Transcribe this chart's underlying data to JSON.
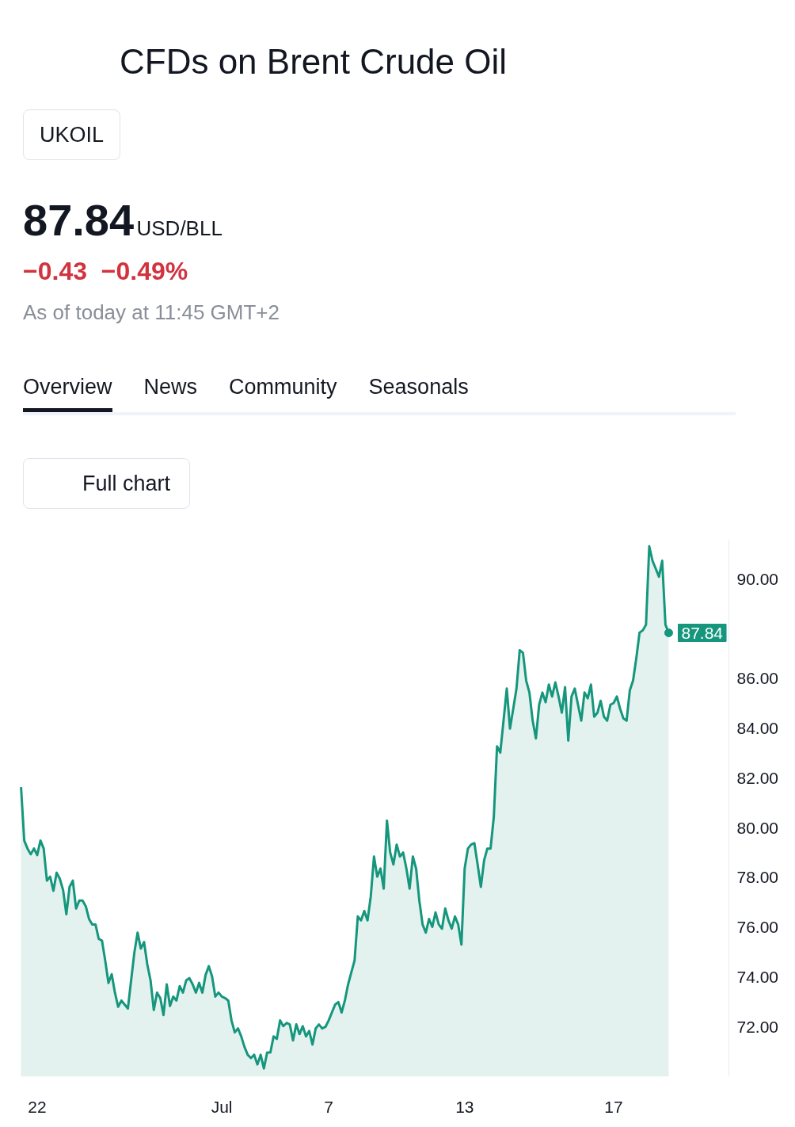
{
  "chart_data": {
    "type": "area",
    "title": "CFDs on Brent Crude Oil",
    "annotations": [
      "UKOIL",
      "87.84",
      "USD/BLL",
      "−0.43",
      "−0.49%",
      "As of today at 11:45 GMT+2",
      "Overview",
      "News",
      "Community",
      "Seasonals",
      "Full chart",
      "87.84"
    ],
    "color": "#15967d",
    "categories": [
      null,
      null,
      null,
      null,
      null,
      "22",
      null,
      null,
      null,
      null,
      null,
      null,
      null,
      null,
      null,
      null,
      null,
      null,
      null,
      null,
      null,
      null,
      null,
      null,
      null,
      null,
      null,
      null,
      null,
      null,
      null,
      null,
      null,
      null,
      null,
      null,
      null,
      null,
      null,
      null,
      null,
      null,
      null,
      null,
      null,
      null,
      null,
      null,
      null,
      null,
      null,
      null,
      null,
      null,
      null,
      null,
      null,
      null,
      null,
      null,
      null,
      null,
      "Jul",
      null,
      null,
      null,
      null,
      null,
      null,
      null,
      null,
      null,
      null,
      null,
      null,
      null,
      null,
      null,
      null,
      null,
      null,
      null,
      null,
      null,
      null,
      null,
      null,
      null,
      null,
      null,
      null,
      null,
      null,
      null,
      null,
      "7",
      null,
      null,
      null,
      null,
      null,
      null,
      null,
      null,
      null,
      null,
      null,
      null,
      null,
      null,
      null,
      null,
      null,
      null,
      null,
      null,
      null,
      null,
      null,
      null,
      null,
      null,
      null,
      null,
      null,
      null,
      null,
      null,
      null,
      null,
      null,
      null,
      null,
      null,
      null,
      null,
      null,
      "13",
      null,
      null,
      null,
      null,
      null,
      null,
      null,
      null,
      null,
      null,
      null,
      null,
      null,
      null,
      null,
      null,
      null,
      null,
      null,
      null,
      null,
      null,
      null,
      null,
      null,
      null,
      null,
      null,
      null,
      null,
      null,
      null,
      null,
      null,
      null,
      null,
      null,
      null,
      null,
      null,
      null,
      null,
      null,
      null,
      null,
      "17",
      null,
      null,
      null,
      null,
      null,
      null,
      null,
      null,
      null,
      null,
      null,
      null,
      null,
      null,
      null,
      null,
      null
    ],
    "values": [
      81.64,
      79.49,
      79.17,
      78.94,
      79.17,
      78.91,
      79.49,
      79.17,
      77.88,
      78.04,
      77.47,
      78.2,
      77.95,
      77.5,
      76.53,
      77.63,
      77.88,
      76.76,
      77.08,
      77.08,
      76.85,
      76.34,
      76.12,
      76.12,
      75.54,
      75.47,
      74.67,
      73.77,
      74.12,
      73.38,
      72.81,
      73.06,
      72.9,
      72.74,
      73.87,
      74.99,
      75.79,
      75.15,
      75.41,
      74.51,
      73.87,
      72.68,
      73.38,
      73.16,
      72.48,
      73.71,
      72.84,
      73.22,
      73.06,
      73.64,
      73.38,
      73.87,
      73.96,
      73.71,
      73.38,
      73.77,
      73.38,
      74.09,
      74.44,
      74.03,
      73.22,
      73.38,
      73.22,
      73.16,
      73.06,
      72.26,
      71.78,
      71.94,
      71.62,
      71.2,
      70.88,
      70.75,
      70.88,
      70.49,
      70.88,
      70.33,
      70.97,
      70.97,
      71.62,
      71.52,
      72.26,
      72.03,
      72.16,
      72.1,
      71.46,
      72.1,
      71.71,
      72.03,
      71.62,
      71.84,
      71.29,
      71.94,
      72.1,
      71.94,
      72.0,
      72.26,
      72.58,
      72.9,
      73.0,
      72.58,
      73.06,
      73.71,
      74.19,
      74.67,
      76.44,
      76.28,
      76.66,
      76.28,
      77.24,
      78.85,
      78.04,
      78.37,
      77.56,
      80.29,
      79.01,
      78.53,
      79.33,
      78.85,
      79.01,
      78.37,
      77.56,
      78.85,
      78.37,
      77.08,
      76.12,
      75.79,
      76.34,
      76.02,
      76.6,
      76.12,
      75.95,
      76.76,
      76.28,
      75.95,
      76.44,
      76.12,
      75.31,
      78.37,
      79.17,
      79.33,
      79.39,
      78.53,
      77.63,
      78.69,
      79.17,
      79.17,
      80.45,
      83.28,
      83.03,
      84.31,
      85.6,
      83.99,
      84.79,
      85.6,
      87.14,
      87.04,
      85.92,
      85.44,
      84.31,
      83.6,
      84.95,
      85.44,
      85.05,
      85.76,
      85.28,
      85.85,
      85.28,
      84.63,
      85.66,
      83.51,
      85.28,
      85.6,
      84.95,
      84.31,
      85.44,
      85.21,
      85.76,
      84.47,
      84.63,
      85.11,
      84.47,
      84.31,
      84.95,
      85.02,
      85.28,
      84.79,
      84.41,
      84.31,
      85.53,
      85.92,
      86.82,
      87.85,
      87.94,
      88.17,
      91.32,
      90.74,
      90.42,
      90.1,
      90.74,
      88.17,
      87.84
    ],
    "ylim": [
      70.0,
      91.6
    ],
    "yticks": [
      {
        "value": 72,
        "label": "72.00"
      },
      {
        "value": 74,
        "label": "74.00"
      },
      {
        "value": 76,
        "label": "76.00"
      },
      {
        "value": 78,
        "label": "78.00"
      },
      {
        "value": 80,
        "label": "80.00"
      },
      {
        "value": 82,
        "label": "82.00"
      },
      {
        "value": 84,
        "label": "84.00"
      },
      {
        "value": 86,
        "label": "86.00"
      },
      {
        "value": 90,
        "label": "90.00"
      }
    ]
  }
}
